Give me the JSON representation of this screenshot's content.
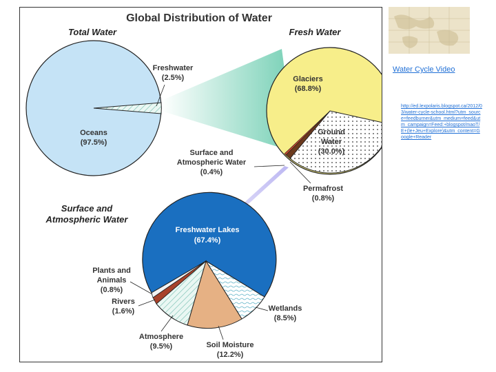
{
  "figure": {
    "title": "Global Distribution of Water",
    "total_water": {
      "heading": "Total Water",
      "oceans_label": "Oceans",
      "oceans_value": "(97.5%)",
      "freshwater_label": "Freshwater",
      "freshwater_value": "(2.5%)"
    },
    "fresh_water": {
      "heading": "Fresh Water",
      "glaciers_label": "Glaciers",
      "glaciers_value": "(68.8%)",
      "ground_label_1": "Ground",
      "ground_label_2": "Water",
      "ground_value": "(30.0%)",
      "surface_label_1": "Surface and",
      "surface_label_2": "Atmospheric Water",
      "surface_value": "(0.4%)",
      "permafrost_label": "Permafrost",
      "permafrost_value": "(0.8%)"
    },
    "surface_water": {
      "heading_1": "Surface and",
      "heading_2": "Atmospheric Water",
      "lakes_label": "Freshwater Lakes",
      "lakes_value": "(67.4%)",
      "plants_label_1": "Plants and",
      "plants_label_2": "Animals",
      "plants_value": "(0.8%)",
      "rivers_label": "Rivers",
      "rivers_value": "(1.6%)",
      "atmosphere_label": "Atmosphere",
      "atmosphere_value": "(9.5%)",
      "soil_label": "Soil Moisture",
      "soil_value": "(12.2%)",
      "wetlands_label": "Wetlands",
      "wetlands_value": "(8.5%)"
    },
    "colors": {
      "ocean": "#c5e3f6",
      "glacier": "#f7ee8a",
      "lakes": "#1a6fc0",
      "soil": "#e6b184",
      "rivers": "#a8422a",
      "beam": "#7ed3b8",
      "beam2": "#b9b3ee"
    }
  },
  "sidebar": {
    "video_link": "Water Cycle Video",
    "url_text": "http://ed.lexpolaris.blogspot.ca/2012/03/water-cycle-school.html?utm_source=feedburner&utm_medium=feed&utm_campaign=Feed:+blogspot/maoT/E+(le+Jeu+Explore)&utm_content=Google+Reader"
  }
}
